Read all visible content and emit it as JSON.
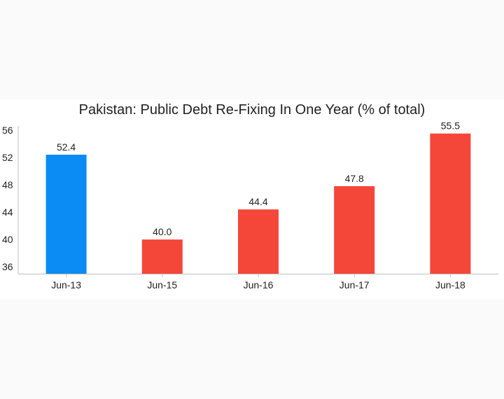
{
  "chart_data": {
    "type": "bar",
    "title": "Pakistan: Public Debt Re-Fixing In One Year (% of total)",
    "categories": [
      "Jun-13",
      "Jun-15",
      "Jun-16",
      "Jun-17",
      "Jun-18"
    ],
    "values": [
      52.4,
      40.0,
      44.4,
      47.8,
      55.5
    ],
    "value_labels": [
      "52.4",
      "40.0",
      "44.4",
      "47.8",
      "55.5"
    ],
    "bar_colors": [
      "#0a8cf4",
      "#f4473a",
      "#f4473a",
      "#f4473a",
      "#f4473a"
    ],
    "yticks": [
      "36",
      "40",
      "44",
      "48",
      "52",
      "56"
    ],
    "ylim": [
      35,
      56.6
    ],
    "xlabel": "",
    "ylabel": "",
    "grid": false,
    "legend": "none"
  }
}
